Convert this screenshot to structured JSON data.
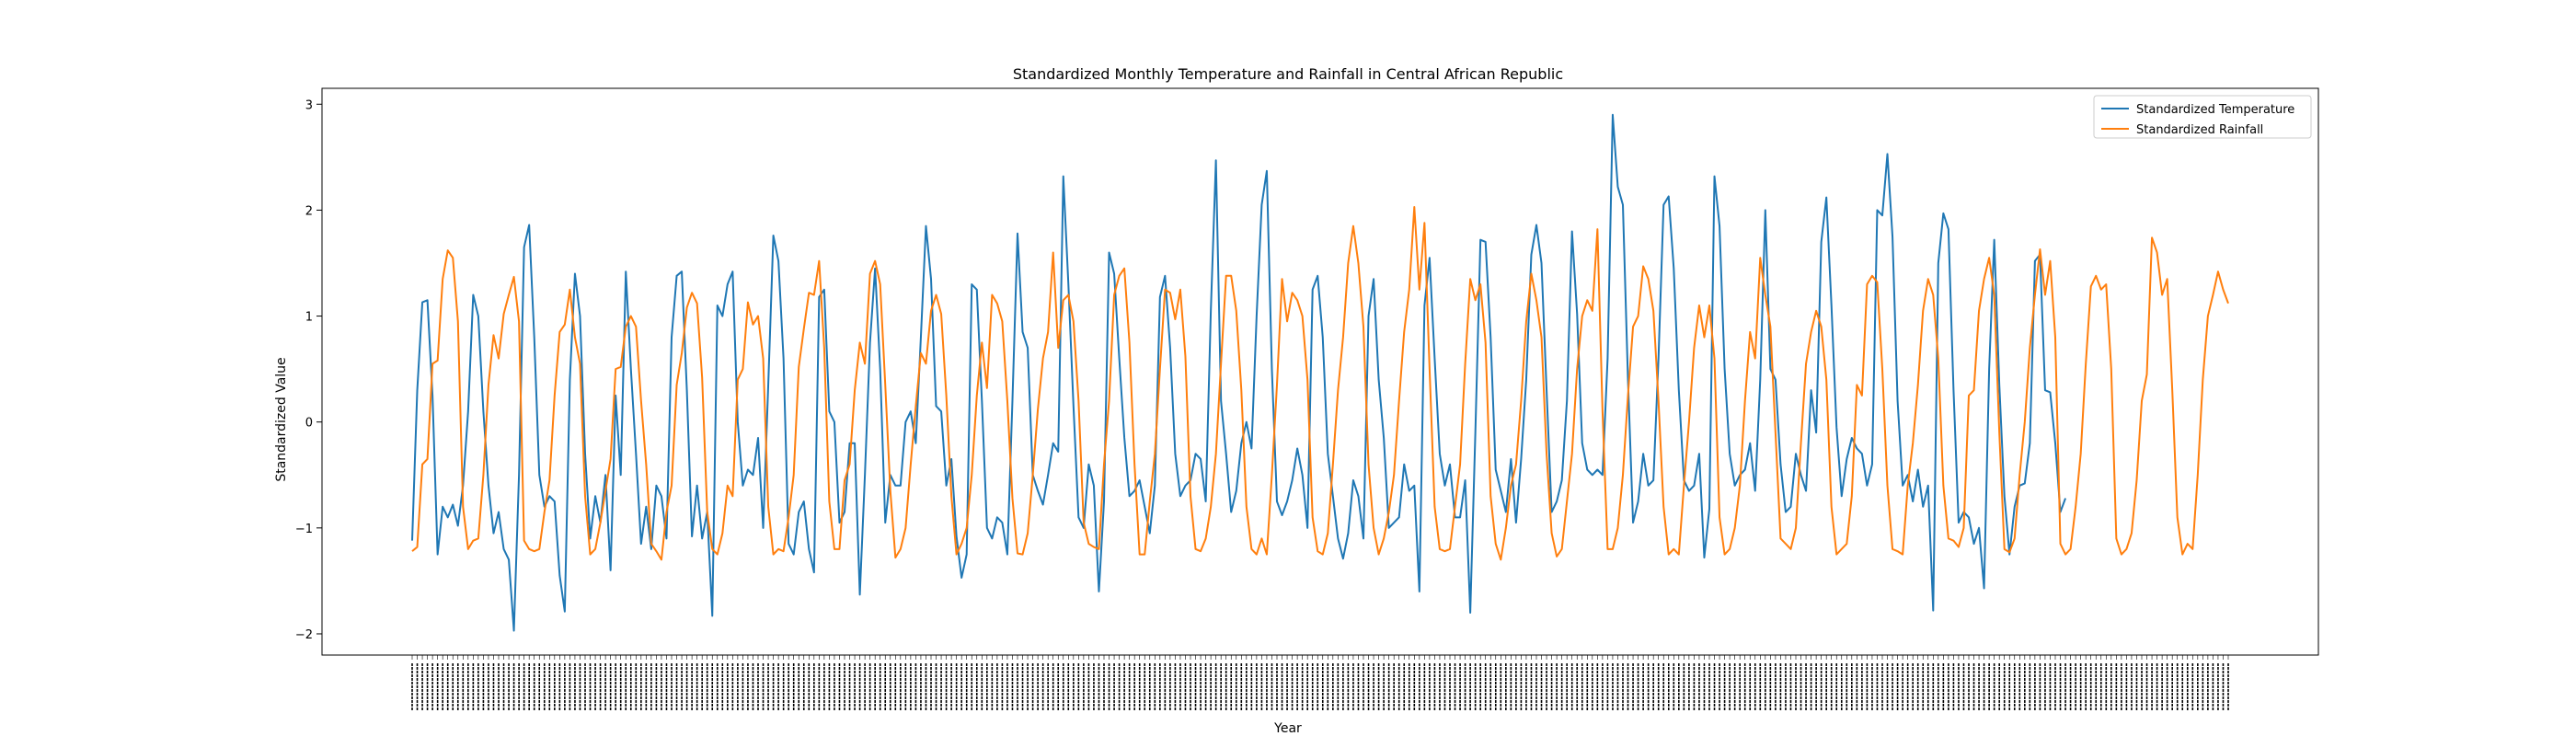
{
  "chart_data": {
    "type": "line",
    "title": "Standardized Monthly Temperature and Rainfall in Central African Republic",
    "xlabel": "Year",
    "ylabel": "Standardized Value",
    "yticks": [
      -2,
      -1,
      0,
      1,
      2,
      3
    ],
    "ylim": [
      -2.2,
      3.15
    ],
    "legend_position": "top-right",
    "grid": false,
    "series": [
      {
        "name": "Standardized Temperature",
        "color": "#1f77b4",
        "values": [
          -1.12,
          0.3,
          1.13,
          1.15,
          0.25,
          -1.25,
          -0.8,
          -0.9,
          -0.78,
          -0.98,
          -0.6,
          0.1,
          1.2,
          1.0,
          0.1,
          -0.6,
          -1.05,
          -0.85,
          -1.2,
          -1.3,
          -1.97,
          -0.5,
          1.65,
          1.86,
          0.8,
          -0.5,
          -0.8,
          -0.7,
          -0.75,
          -1.45,
          -1.79,
          0.4,
          1.4,
          1.0,
          -0.3,
          -1.1,
          -0.7,
          -0.95,
          -0.5,
          -1.4,
          0.25,
          -0.5,
          1.42,
          0.5,
          -0.3,
          -1.15,
          -0.8,
          -1.2,
          -0.6,
          -0.7,
          -1.1,
          0.8,
          1.38,
          1.42,
          0.3,
          -1.08,
          -0.6,
          -1.1,
          -0.85,
          -1.83,
          1.1,
          1.0,
          1.3,
          1.42,
          0.0,
          -0.6,
          -0.45,
          -0.5,
          -0.15,
          -1.0,
          0.35,
          1.76,
          1.52,
          0.6,
          -1.15,
          -1.25,
          -0.85,
          -0.75,
          -1.2,
          -1.42,
          1.18,
          1.25,
          0.1,
          0.0,
          -0.95,
          -0.85,
          -0.2,
          -0.2,
          -1.63,
          -0.5,
          0.75,
          1.45,
          0.5,
          -0.95,
          -0.5,
          -0.6,
          -0.6,
          0.0,
          0.1,
          -0.2,
          0.8,
          1.85,
          1.35,
          0.15,
          0.1,
          -0.6,
          -0.35,
          -1.08,
          -1.47,
          -1.25,
          1.3,
          1.25,
          0.2,
          -1.0,
          -1.1,
          -0.9,
          -0.95,
          -1.25,
          0.2,
          1.78,
          0.85,
          0.7,
          -0.5,
          -0.65,
          -0.78,
          -0.5,
          -0.2,
          -0.28,
          2.32,
          1.3,
          0.15,
          -0.9,
          -1.0,
          -0.4,
          -0.6,
          -1.6,
          -0.75,
          1.6,
          1.4,
          0.6,
          -0.15,
          -0.7,
          -0.65,
          -0.55,
          -0.8,
          -1.05,
          -0.6,
          1.18,
          1.38,
          0.7,
          -0.3,
          -0.7,
          -0.6,
          -0.55,
          -0.3,
          -0.35,
          -0.75,
          1.05,
          2.47,
          0.2,
          -0.3,
          -0.85,
          -0.65,
          -0.2,
          0.0,
          -0.25,
          1.0,
          2.05,
          2.37,
          0.5,
          -0.75,
          -0.88,
          -0.75,
          -0.55,
          -0.25,
          -0.5,
          -1.0,
          1.25,
          1.38,
          0.8,
          -0.3,
          -0.7,
          -1.1,
          -1.29,
          -1.05,
          -0.55,
          -0.7,
          -1.1,
          1.0,
          1.35,
          0.4,
          -0.15,
          -1.0,
          -0.95,
          -0.9,
          -0.4,
          -0.65,
          -0.6,
          -1.6,
          1.1,
          1.55,
          0.6,
          -0.3,
          -0.6,
          -0.4,
          -0.9,
          -0.9,
          -0.55,
          -1.8,
          -0.1,
          1.72,
          1.7,
          0.8,
          -0.45,
          -0.65,
          -0.85,
          -0.35,
          -0.95,
          -0.35,
          0.4,
          1.58,
          1.86,
          1.5,
          0.3,
          -0.85,
          -0.75,
          -0.55,
          0.2,
          1.8,
          1.02,
          -0.2,
          -0.45,
          -0.5,
          -0.45,
          -0.5,
          0.6,
          2.9,
          2.22,
          2.05,
          0.4,
          -0.95,
          -0.75,
          -0.3,
          -0.6,
          -0.55,
          0.6,
          2.05,
          2.13,
          1.45,
          0.3,
          -0.55,
          -0.65,
          -0.6,
          -0.3,
          -1.28,
          -0.82,
          2.32,
          1.85,
          0.5,
          -0.3,
          -0.6,
          -0.5,
          -0.45,
          -0.2,
          -0.65,
          0.4,
          2.0,
          0.5,
          0.4,
          -0.4,
          -0.85,
          -0.8,
          -0.3,
          -0.5,
          -0.65,
          0.3,
          -0.1,
          1.7,
          2.12,
          1.1,
          -0.05,
          -0.7,
          -0.35,
          -0.15,
          -0.25,
          -0.3,
          -0.6,
          -0.4,
          2.0,
          1.95,
          2.53,
          1.75,
          0.2,
          -0.6,
          -0.5,
          -0.75,
          -0.45,
          -0.8,
          -0.6,
          -1.78,
          1.5,
          1.97,
          1.82,
          0.3,
          -0.95,
          -0.85,
          -0.9,
          -1.15,
          -1.0,
          -1.57,
          0.5,
          1.72,
          0.35,
          -0.7,
          -1.25,
          -0.8,
          -0.6,
          -0.58,
          -0.2,
          1.52,
          1.58,
          0.3,
          0.28,
          -0.2,
          -0.85,
          -0.72
        ]
      },
      {
        "name": "Standardized Rainfall",
        "color": "#ff7f0e",
        "values": [
          -1.22,
          -1.18,
          -0.4,
          -0.35,
          0.55,
          0.58,
          1.35,
          1.62,
          1.55,
          0.95,
          -0.8,
          -1.2,
          -1.12,
          -1.1,
          -0.5,
          0.35,
          0.82,
          0.6,
          1.02,
          1.2,
          1.37,
          0.95,
          -1.12,
          -1.2,
          -1.22,
          -1.2,
          -0.85,
          -0.55,
          0.25,
          0.85,
          0.92,
          1.25,
          0.8,
          0.55,
          -0.7,
          -1.25,
          -1.2,
          -0.95,
          -0.65,
          -0.35,
          0.5,
          0.52,
          0.9,
          1.0,
          0.9,
          0.2,
          -0.4,
          -1.15,
          -1.22,
          -1.3,
          -0.85,
          -0.6,
          0.35,
          0.65,
          1.08,
          1.22,
          1.12,
          0.42,
          -0.85,
          -1.2,
          -1.25,
          -1.05,
          -0.6,
          -0.7,
          0.4,
          0.5,
          1.13,
          0.92,
          1.0,
          0.6,
          -0.8,
          -1.25,
          -1.2,
          -1.22,
          -0.9,
          -0.5,
          0.52,
          0.88,
          1.22,
          1.2,
          1.52,
          0.7,
          -0.75,
          -1.2,
          -1.2,
          -0.55,
          -0.4,
          0.3,
          0.75,
          0.55,
          1.4,
          1.52,
          1.3,
          0.35,
          -0.65,
          -1.28,
          -1.2,
          -1.0,
          -0.4,
          0.15,
          0.65,
          0.55,
          1.05,
          1.2,
          1.02,
          0.25,
          -0.7,
          -1.25,
          -1.15,
          -1.0,
          -0.5,
          0.25,
          0.75,
          0.32,
          1.2,
          1.12,
          0.95,
          0.2,
          -0.72,
          -1.24,
          -1.25,
          -1.05,
          -0.5,
          0.12,
          0.6,
          0.85,
          1.6,
          0.7,
          1.15,
          1.2,
          0.95,
          0.2,
          -0.95,
          -1.15,
          -1.18,
          -1.2,
          -0.4,
          0.2,
          1.2,
          1.38,
          1.45,
          0.75,
          -0.4,
          -1.25,
          -1.25,
          -0.75,
          -0.3,
          0.5,
          1.25,
          1.22,
          0.97,
          1.25,
          0.62,
          -0.7,
          -1.2,
          -1.22,
          -1.1,
          -0.8,
          -0.3,
          0.55,
          1.38,
          1.38,
          1.05,
          0.3,
          -0.8,
          -1.2,
          -1.25,
          -1.1,
          -1.25,
          -0.5,
          0.35,
          1.35,
          0.95,
          1.22,
          1.15,
          1.0,
          0.4,
          -0.9,
          -1.22,
          -1.25,
          -1.05,
          -0.4,
          0.3,
          0.8,
          1.5,
          1.85,
          1.5,
          0.9,
          -0.4,
          -1.0,
          -1.25,
          -1.1,
          -0.85,
          -0.5,
          0.2,
          0.85,
          1.25,
          2.03,
          1.25,
          1.88,
          0.5,
          -0.8,
          -1.2,
          -1.22,
          -1.2,
          -0.8,
          -0.4,
          0.55,
          1.35,
          1.15,
          1.3,
          0.75,
          -0.7,
          -1.15,
          -1.3,
          -1.0,
          -0.6,
          -0.4,
          0.2,
          0.95,
          1.4,
          1.15,
          0.8,
          -0.3,
          -1.05,
          -1.27,
          -1.2,
          -0.75,
          -0.3,
          0.5,
          1.0,
          1.15,
          1.05,
          1.82,
          0.1,
          -1.2,
          -1.2,
          -1.0,
          -0.5,
          0.25,
          0.9,
          1.0,
          1.47,
          1.35,
          1.05,
          0.2,
          -0.8,
          -1.25,
          -1.2,
          -1.25,
          -0.6,
          0.0,
          0.7,
          1.1,
          0.8,
          1.1,
          0.6,
          -0.9,
          -1.25,
          -1.2,
          -1.0,
          -0.6,
          0.2,
          0.85,
          0.6,
          1.55,
          1.2,
          0.9,
          -0.1,
          -1.1,
          -1.15,
          -1.2,
          -1.0,
          -0.2,
          0.55,
          0.85,
          1.05,
          0.9,
          0.4,
          -0.8,
          -1.25,
          -1.2,
          -1.15,
          -0.7,
          0.35,
          0.25,
          1.3,
          1.38,
          1.32,
          0.5,
          -0.6,
          -1.2,
          -1.22,
          -1.25,
          -0.6,
          -0.2,
          0.35,
          1.05,
          1.35,
          1.2,
          0.6,
          -0.6,
          -1.1,
          -1.12,
          -1.18,
          -1.0,
          0.25,
          0.3,
          1.05,
          1.35,
          1.55,
          1.2,
          -0.1,
          -1.2,
          -1.23,
          -1.1,
          -0.5,
          0.0,
          0.7,
          1.2,
          1.63,
          1.2,
          1.52,
          0.8,
          -1.15,
          -1.25,
          -1.2,
          -0.8,
          -0.3,
          0.55,
          1.28,
          1.38,
          1.25,
          1.3,
          0.5,
          -1.1,
          -1.25,
          -1.2,
          -1.05,
          -0.55,
          0.2,
          0.45,
          1.74,
          1.6,
          1.2,
          1.35,
          0.3,
          -0.9,
          -1.25,
          -1.15,
          -1.2,
          -0.5,
          0.4,
          1.0,
          1.2,
          1.42,
          1.25,
          1.12
        ]
      }
    ]
  }
}
